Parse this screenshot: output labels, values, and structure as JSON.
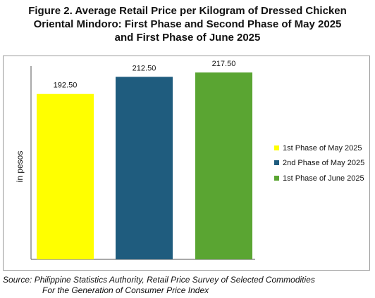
{
  "figure": {
    "title_lines": [
      "Figure 2. Average Retail Price per Kilogram of Dressed Chicken",
      "Oriental Mindoro: First Phase and Second Phase of May 2025",
      "and First Phase of June 2025"
    ],
    "source_lines": [
      "Source: Philippine Statistics Authority, Retail Price Survey of Selected Commodities",
      "For the Generation of Consumer Price Index"
    ]
  },
  "chart_data": {
    "type": "bar",
    "categories": [
      "1st Phase of May 2025",
      "2nd Phase of May 2025",
      "1st Phase of June 2025"
    ],
    "values": [
      192.5,
      212.5,
      217.5
    ],
    "value_labels": [
      "192.50",
      "212.50",
      "217.50"
    ],
    "colors": [
      "#ffff00",
      "#1f5c7e",
      "#5aa532"
    ],
    "ylabel": "in pesos",
    "xlabel": "",
    "ylim": [
      0,
      225
    ],
    "grid": false,
    "legend": "right"
  }
}
